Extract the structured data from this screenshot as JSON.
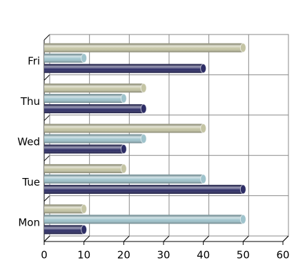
{
  "chart_data": {
    "type": "bar",
    "orientation": "horizontal",
    "categories": [
      "Mon",
      "Tue",
      "Wed",
      "Thu",
      "Fri"
    ],
    "series": [
      {
        "color": "#2e2e66",
        "values": [
          10,
          50,
          20,
          25,
          40
        ]
      },
      {
        "color": "#9fc3cc",
        "values": [
          50,
          40,
          25,
          20,
          10
        ]
      },
      {
        "color": "#c4c4a4",
        "values": [
          10,
          20,
          40,
          25,
          50
        ]
      }
    ],
    "xlim": [
      0,
      60
    ],
    "xticks": [
      0,
      10,
      20,
      30,
      40,
      50,
      60
    ],
    "grid": true
  }
}
